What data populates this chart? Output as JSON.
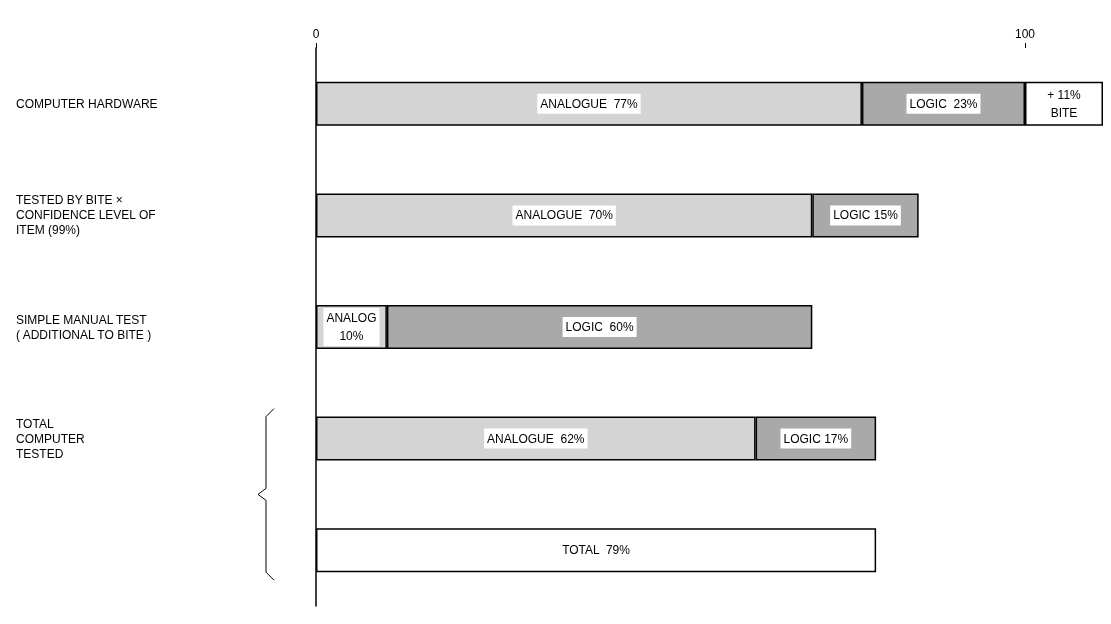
{
  "chart_data": {
    "type": "bar",
    "orientation": "horizontal",
    "stacked": true,
    "categories": [
      "COMPUTER HARDWARE",
      "TESTED BY BITE ×\nCONFIDENCE LEVEL OF\nITEM (99%)",
      "SIMPLE MANUAL TEST\n( ADDITIONAL TO BITE )",
      "TOTAL\nCOMPUTER\nTESTED",
      null
    ],
    "series": [
      {
        "color": "#d4d4d4",
        "values": [
          77,
          70,
          10,
          62,
          null
        ],
        "value_labels": [
          "ANALOGUE  77%",
          "ANALOGUE  70%",
          "ANALOG\n10%",
          "ANALOGUE  62%",
          null
        ]
      },
      {
        "color": "#a9a9a9",
        "values": [
          23,
          15,
          60,
          17,
          null
        ],
        "value_labels": [
          "LOGIC  23%",
          "LOGIC 15%",
          "LOGIC  60%",
          "LOGIC 17%",
          null
        ]
      },
      {
        "color": "#ffffff",
        "values": [
          11,
          null,
          null,
          null,
          null
        ],
        "value_labels": [
          "+ 11%\nBITE",
          null,
          null,
          null,
          null
        ]
      },
      {
        "color": "#ffffff",
        "values": [
          null,
          null,
          null,
          null,
          79
        ],
        "value_labels": [
          null,
          null,
          null,
          null,
          "TOTAL  79%"
        ]
      }
    ],
    "x2lim": [
      0,
      111
    ],
    "x2ticks": [
      0,
      100
    ],
    "grid": false
  }
}
